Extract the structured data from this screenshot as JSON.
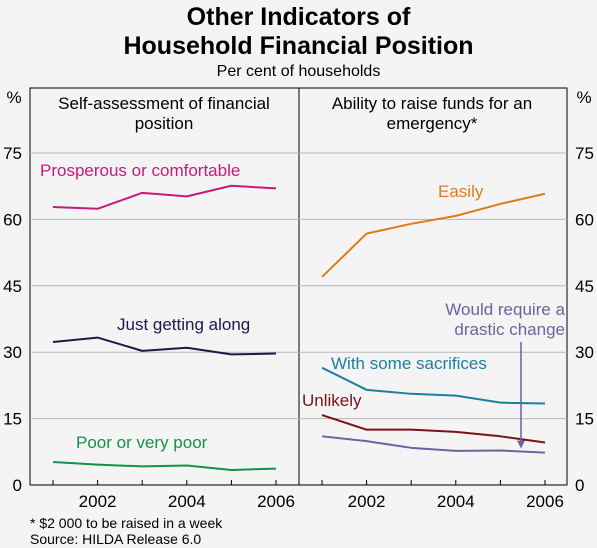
{
  "title_line1": "Other Indicators of",
  "title_line2": "Household Financial Position",
  "subtitle": "Per cent of households",
  "footnote": "*   $2 000 to be raised in a week",
  "source": "Source: HILDA Release 6.0",
  "chart_data": [
    {
      "type": "line",
      "title": "Self-assessment of financial position",
      "title_lines": [
        "Self-assessment of financial",
        "position"
      ],
      "unit_left": "%",
      "x": [
        2001,
        2002,
        2003,
        2004,
        2005,
        2006
      ],
      "xticks": [
        "2002",
        "2004",
        "2006"
      ],
      "ylim": [
        0,
        75
      ],
      "yticks": [
        "0",
        "15",
        "30",
        "45",
        "60",
        "75"
      ],
      "series": [
        {
          "name": "Prosperous or comfortable",
          "color": "#c8197c",
          "values": [
            62.8,
            62.4,
            66.0,
            65.2,
            67.6,
            67.0
          ]
        },
        {
          "name": "Just getting along",
          "color": "#1c1a4c",
          "values": [
            32.3,
            33.3,
            30.3,
            31.0,
            29.5,
            29.7
          ]
        },
        {
          "name": "Poor or very poor",
          "color": "#11934a",
          "values": [
            5.2,
            4.6,
            4.2,
            4.4,
            3.4,
            3.7
          ]
        }
      ]
    },
    {
      "type": "line",
      "title": "Ability to raise funds for an emergency*",
      "title_lines": [
        "Ability to raise funds for an",
        "emergency*"
      ],
      "unit_right": "%",
      "x": [
        2001,
        2002,
        2003,
        2004,
        2005,
        2006
      ],
      "xticks": [
        "2002",
        "2004",
        "2006"
      ],
      "ylim": [
        0,
        75
      ],
      "yticks": [
        "0",
        "15",
        "30",
        "45",
        "60",
        "75"
      ],
      "series": [
        {
          "name": "Easily",
          "color": "#e07b1a",
          "values": [
            47.0,
            56.8,
            59.0,
            60.8,
            63.5,
            65.8
          ]
        },
        {
          "name": "With some sacrifices",
          "color": "#1d7fa0",
          "values": [
            26.5,
            21.5,
            20.6,
            20.2,
            18.6,
            18.4
          ]
        },
        {
          "name": "Unlikely",
          "color": "#7b1219",
          "values": [
            15.8,
            12.5,
            12.5,
            12.0,
            11.0,
            9.6
          ]
        },
        {
          "name": "Would require a drastic change",
          "label_lines": [
            "Would require a",
            "drastic change"
          ],
          "color": "#6e62a0",
          "values": [
            11.0,
            9.9,
            8.4,
            7.7,
            7.8,
            7.3
          ]
        }
      ]
    }
  ]
}
